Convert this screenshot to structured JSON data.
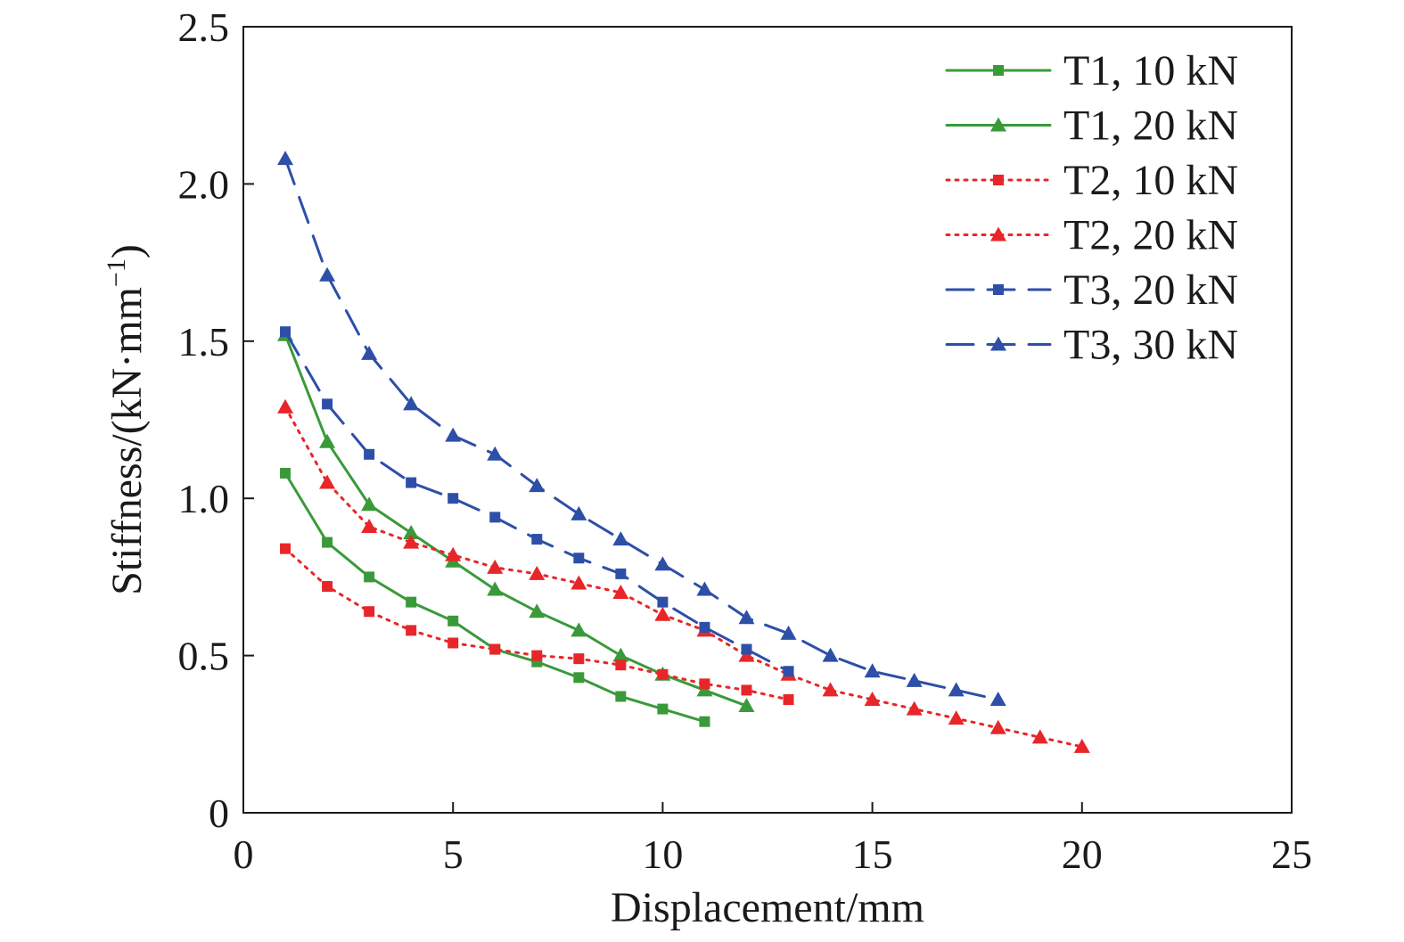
{
  "chart_data": {
    "type": "line",
    "xlabel": "Displacement/mm",
    "ylabel": {
      "prefix": "Stiffness/(kN·mm",
      "exponent": "−1",
      "suffix": ")"
    },
    "xlim": [
      0,
      25
    ],
    "ylim": [
      0,
      2.5
    ],
    "x_ticks": [
      0,
      5,
      10,
      15,
      20,
      25
    ],
    "x_tick_labels": [
      "0",
      "5",
      "10",
      "15",
      "20",
      "25"
    ],
    "y_ticks": [
      0,
      0.5,
      1.0,
      1.5,
      2.0,
      2.5
    ],
    "y_tick_labels": [
      "0",
      "0.5",
      "1.0",
      "1.5",
      "2.0",
      "2.5"
    ],
    "grid": false,
    "legend_position": "top-right",
    "series": [
      {
        "name": "T1, 10 kN",
        "color": "#3a9a3a",
        "dash": "solid",
        "marker": "square",
        "x": [
          1,
          2,
          3,
          4,
          5,
          6,
          7,
          8,
          9,
          10,
          11
        ],
        "y": [
          1.08,
          0.86,
          0.75,
          0.67,
          0.61,
          0.52,
          0.48,
          0.43,
          0.37,
          0.33,
          0.29
        ]
      },
      {
        "name": "T1, 20 kN",
        "color": "#3a9a3a",
        "dash": "solid",
        "marker": "triangle",
        "x": [
          1,
          2,
          3,
          4,
          5,
          6,
          7,
          8,
          9,
          10,
          11,
          12
        ],
        "y": [
          1.52,
          1.18,
          0.98,
          0.89,
          0.8,
          0.71,
          0.64,
          0.58,
          0.5,
          0.44,
          0.39,
          0.34
        ]
      },
      {
        "name": "T2, 10 kN",
        "color": "#e8262a",
        "dash": "dotted",
        "marker": "square",
        "x": [
          1,
          2,
          3,
          4,
          5,
          6,
          7,
          8,
          9,
          10,
          11,
          12,
          13
        ],
        "y": [
          0.84,
          0.72,
          0.64,
          0.58,
          0.54,
          0.52,
          0.5,
          0.49,
          0.47,
          0.44,
          0.41,
          0.39,
          0.36
        ]
      },
      {
        "name": "T2, 20 kN",
        "color": "#e8262a",
        "dash": "dotted",
        "marker": "triangle",
        "x": [
          1,
          2,
          3,
          4,
          5,
          6,
          7,
          8,
          9,
          10,
          11,
          12,
          13,
          14,
          15,
          16,
          17,
          18,
          19,
          20
        ],
        "y": [
          1.29,
          1.05,
          0.91,
          0.86,
          0.82,
          0.78,
          0.76,
          0.73,
          0.7,
          0.63,
          0.58,
          0.5,
          0.44,
          0.39,
          0.36,
          0.33,
          0.3,
          0.27,
          0.24,
          0.21
        ]
      },
      {
        "name": "T3, 20 kN",
        "color": "#2d4fa8",
        "dash": "dashed",
        "marker": "square",
        "x": [
          1,
          2,
          3,
          4,
          5,
          6,
          7,
          8,
          9,
          10,
          11,
          12,
          13
        ],
        "y": [
          1.53,
          1.3,
          1.14,
          1.05,
          1.0,
          0.94,
          0.87,
          0.81,
          0.76,
          0.67,
          0.59,
          0.52,
          0.45
        ]
      },
      {
        "name": "T3, 30 kN",
        "color": "#2d4fa8",
        "dash": "dashed",
        "marker": "triangle",
        "x": [
          1,
          2,
          3,
          4,
          5,
          6,
          7,
          8,
          9,
          10,
          11,
          12,
          13,
          14,
          15,
          16,
          17,
          18
        ],
        "y": [
          2.08,
          1.71,
          1.46,
          1.3,
          1.2,
          1.14,
          1.04,
          0.95,
          0.87,
          0.79,
          0.71,
          0.62,
          0.57,
          0.5,
          0.45,
          0.42,
          0.39,
          0.36
        ]
      }
    ]
  }
}
